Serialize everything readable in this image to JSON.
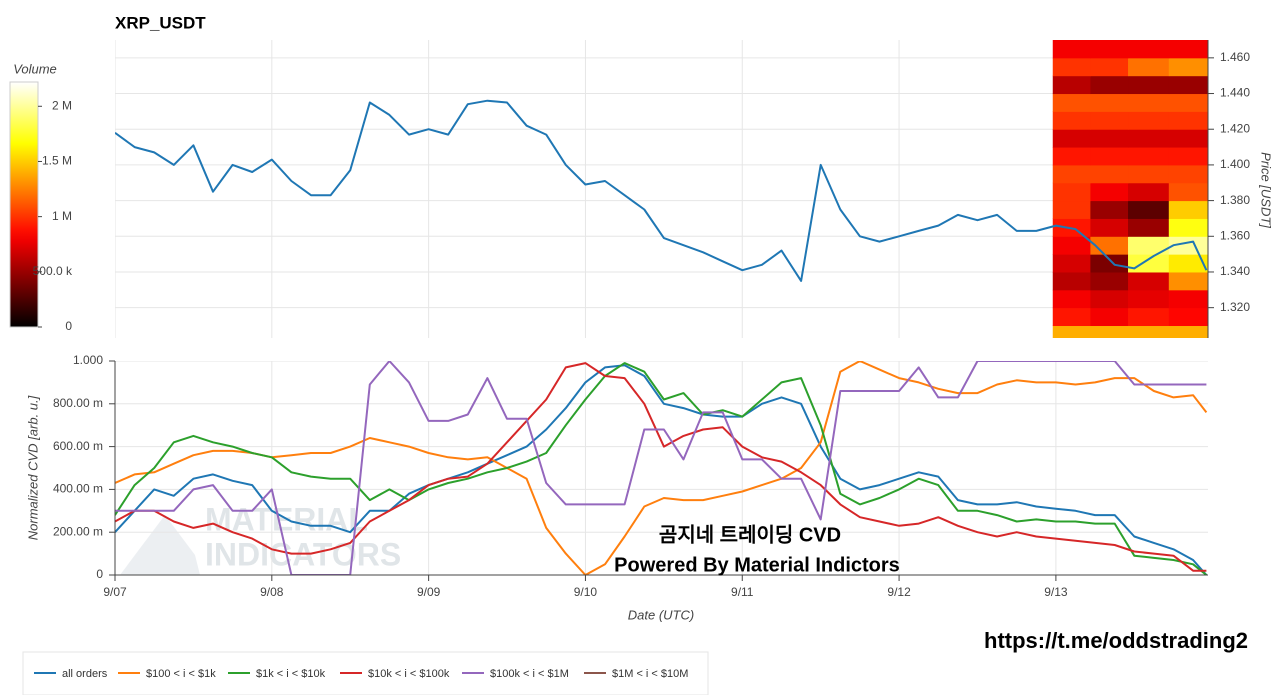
{
  "chart_data": [
    {
      "type": "line",
      "title": "XRP_USDT",
      "ylabel": "Price [USDT]",
      "color": "#1f77b4",
      "x": [
        0,
        0.125,
        0.25,
        0.375,
        0.5,
        0.625,
        0.75,
        0.875,
        1,
        1.125,
        1.25,
        1.375,
        1.5,
        1.625,
        1.75,
        1.875,
        2,
        2.125,
        2.25,
        2.375,
        2.5,
        2.625,
        2.75,
        2.875,
        3,
        3.125,
        3.25,
        3.375,
        3.5,
        3.625,
        3.75,
        3.875,
        4,
        4.125,
        4.25,
        4.375,
        4.5,
        4.625,
        4.75,
        4.875,
        5,
        5.125,
        5.25,
        5.375,
        5.5,
        5.625,
        5.75,
        5.875,
        6,
        6.125,
        6.25,
        6.375,
        6.5,
        6.625,
        6.75,
        6.875,
        6.96
      ],
      "values": [
        1.418,
        1.41,
        1.407,
        1.4,
        1.411,
        1.385,
        1.4,
        1.396,
        1.403,
        1.391,
        1.383,
        1.383,
        1.397,
        1.435,
        1.428,
        1.417,
        1.42,
        1.417,
        1.434,
        1.436,
        1.435,
        1.422,
        1.417,
        1.4,
        1.389,
        1.391,
        1.383,
        1.375,
        1.359,
        1.355,
        1.351,
        1.346,
        1.341,
        1.344,
        1.352,
        1.335,
        1.4,
        1.375,
        1.36,
        1.357,
        1.36,
        1.363,
        1.366,
        1.372,
        1.369,
        1.372,
        1.363,
        1.363,
        1.366,
        1.364,
        1.355,
        1.344,
        1.342,
        1.349,
        1.355,
        1.357,
        1.341
      ],
      "xlim": [
        0,
        6.97
      ],
      "xticks": [
        0,
        1,
        2,
        3,
        4,
        5,
        6
      ],
      "ylim": [
        1.303,
        1.47
      ],
      "yticks": [
        {
          "value": 1.32,
          "label": "1.320"
        },
        {
          "value": 1.34,
          "label": "1.340"
        },
        {
          "value": 1.36,
          "label": "1.360"
        },
        {
          "value": 1.38,
          "label": "1.380"
        },
        {
          "value": 1.4,
          "label": "1.400"
        },
        {
          "value": 1.42,
          "label": "1.420"
        },
        {
          "value": 1.44,
          "label": "1.440"
        },
        {
          "value": 1.46,
          "label": "1.460"
        }
      ],
      "grid": true,
      "heatmap": {
        "x_edges": [
          5.98,
          6.22,
          6.46,
          6.72,
          6.97
        ],
        "y_edges": [
          1.3,
          1.31,
          1.32,
          1.33,
          1.34,
          1.35,
          1.36,
          1.37,
          1.38,
          1.39,
          1.4,
          1.41,
          1.42,
          1.43,
          1.44,
          1.45,
          1.46,
          1.47
        ],
        "values": [
          [
            1400000,
            1400000,
            1400000,
            1400000
          ],
          [
            900000,
            800000,
            900000,
            850000
          ],
          [
            800000,
            700000,
            750000,
            800000
          ],
          [
            600000,
            500000,
            700000,
            1300000
          ],
          [
            700000,
            400000,
            1800000,
            1600000
          ],
          [
            800000,
            1200000,
            1900000,
            2000000
          ],
          [
            900000,
            700000,
            500000,
            1700000
          ],
          [
            1000000,
            500000,
            300000,
            1500000
          ],
          [
            1000000,
            800000,
            700000,
            1100000
          ],
          [
            1050000,
            1050000,
            1050000,
            1050000
          ],
          [
            900000,
            900000,
            900000,
            900000
          ],
          [
            700000,
            700000,
            700000,
            700000
          ],
          [
            1000000,
            1000000,
            1000000,
            1000000
          ],
          [
            1100000,
            1100000,
            1100000,
            1100000
          ],
          [
            600000,
            500000,
            500000,
            500000
          ],
          [
            1000000,
            1000000,
            1200000,
            1300000
          ],
          [
            800000,
            800000,
            800000,
            800000
          ]
        ]
      },
      "colorbar": {
        "title": "Volume",
        "clim": [
          0,
          2220000
        ],
        "ticks": [
          0,
          {
            "value": 500000,
            "label": "500.0 k"
          },
          {
            "value": 1000000,
            "label": "1 M"
          },
          {
            "value": 1500000,
            "label": "1.5 M"
          },
          {
            "value": 2000000,
            "label": "2 M"
          }
        ]
      }
    },
    {
      "type": "line",
      "ylabel": "Normalized CVD [arb. u.]",
      "xlabel": "Date (UTC)",
      "x": [
        0,
        0.125,
        0.25,
        0.375,
        0.5,
        0.625,
        0.75,
        0.875,
        1,
        1.125,
        1.25,
        1.375,
        1.5,
        1.625,
        1.75,
        1.875,
        2,
        2.125,
        2.25,
        2.375,
        2.5,
        2.625,
        2.75,
        2.875,
        3,
        3.125,
        3.25,
        3.375,
        3.5,
        3.625,
        3.75,
        3.875,
        4,
        4.125,
        4.25,
        4.375,
        4.5,
        4.625,
        4.75,
        4.875,
        5,
        5.125,
        5.25,
        5.375,
        5.5,
        5.625,
        5.75,
        5.875,
        6,
        6.125,
        6.25,
        6.375,
        6.5,
        6.625,
        6.75,
        6.875,
        6.96
      ],
      "xlim": [
        0,
        6.97
      ],
      "xticks": [
        {
          "value": 0,
          "label": "9/07"
        },
        {
          "value": 1,
          "label": "9/08"
        },
        {
          "value": 2,
          "label": "9/09"
        },
        {
          "value": 3,
          "label": "9/10"
        },
        {
          "value": 4,
          "label": "9/11"
        },
        {
          "value": 5,
          "label": "9/12"
        },
        {
          "value": 6,
          "label": "9/13"
        }
      ],
      "ylim": [
        0,
        1
      ],
      "yticks": [
        0,
        {
          "value": 0.2,
          "label": "200.00 m"
        },
        {
          "value": 0.4,
          "label": "400.00 m"
        },
        {
          "value": 0.6,
          "label": "600.00 m"
        },
        {
          "value": 0.8,
          "label": "800.00 m"
        },
        {
          "value": 1,
          "label": "1.000"
        }
      ],
      "grid": true,
      "series": [
        {
          "name": "all orders",
          "color": "#1f77b4",
          "values": [
            0.2,
            0.3,
            0.4,
            0.37,
            0.45,
            0.47,
            0.44,
            0.42,
            0.3,
            0.25,
            0.23,
            0.23,
            0.2,
            0.3,
            0.3,
            0.38,
            0.42,
            0.45,
            0.48,
            0.52,
            0.56,
            0.6,
            0.68,
            0.78,
            0.9,
            0.97,
            0.98,
            0.93,
            0.8,
            0.78,
            0.75,
            0.74,
            0.74,
            0.8,
            0.83,
            0.8,
            0.6,
            0.45,
            0.4,
            0.42,
            0.45,
            0.48,
            0.46,
            0.35,
            0.33,
            0.33,
            0.34,
            0.32,
            0.31,
            0.3,
            0.28,
            0.28,
            0.18,
            0.15,
            0.12,
            0.07,
            0
          ]
        },
        {
          "name": "$100 < i < $1k",
          "color": "#ff7f0e",
          "values": [
            0.43,
            0.47,
            0.48,
            0.52,
            0.56,
            0.58,
            0.58,
            0.57,
            0.55,
            0.56,
            0.57,
            0.57,
            0.6,
            0.64,
            0.62,
            0.6,
            0.57,
            0.55,
            0.54,
            0.55,
            0.5,
            0.45,
            0.22,
            0.1,
            0,
            0.05,
            0.18,
            0.32,
            0.36,
            0.35,
            0.35,
            0.37,
            0.39,
            0.42,
            0.45,
            0.5,
            0.62,
            0.95,
            1,
            0.96,
            0.92,
            0.9,
            0.87,
            0.85,
            0.85,
            0.89,
            0.91,
            0.9,
            0.9,
            0.89,
            0.9,
            0.92,
            0.92,
            0.86,
            0.83,
            0.84,
            0.76
          ]
        },
        {
          "name": "$1k < i < $10k",
          "color": "#2ca02c",
          "values": [
            0.28,
            0.42,
            0.5,
            0.62,
            0.65,
            0.62,
            0.6,
            0.57,
            0.55,
            0.48,
            0.46,
            0.45,
            0.45,
            0.35,
            0.4,
            0.35,
            0.4,
            0.43,
            0.45,
            0.48,
            0.5,
            0.53,
            0.57,
            0.7,
            0.82,
            0.93,
            0.99,
            0.95,
            0.82,
            0.85,
            0.75,
            0.77,
            0.74,
            0.82,
            0.9,
            0.92,
            0.7,
            0.38,
            0.33,
            0.36,
            0.4,
            0.45,
            0.42,
            0.3,
            0.3,
            0.28,
            0.25,
            0.26,
            0.25,
            0.25,
            0.24,
            0.24,
            0.09,
            0.08,
            0.07,
            0.05,
            0
          ]
        },
        {
          "name": "$10k < i < $100k",
          "color": "#d62728",
          "values": [
            0.25,
            0.3,
            0.3,
            0.25,
            0.22,
            0.24,
            0.2,
            0.17,
            0.12,
            0.1,
            0.1,
            0.12,
            0.15,
            0.25,
            0.3,
            0.35,
            0.42,
            0.45,
            0.46,
            0.52,
            0.62,
            0.72,
            0.82,
            0.97,
            0.99,
            0.93,
            0.92,
            0.8,
            0.6,
            0.65,
            0.68,
            0.69,
            0.6,
            0.55,
            0.53,
            0.48,
            0.42,
            0.33,
            0.27,
            0.25,
            0.23,
            0.24,
            0.27,
            0.23,
            0.2,
            0.18,
            0.2,
            0.18,
            0.17,
            0.16,
            0.15,
            0.14,
            0.11,
            0.1,
            0.09,
            0.02,
            0.02
          ]
        },
        {
          "name": "$100k < i < $1M",
          "color": "#9467bd",
          "values": [
            0.3,
            0.3,
            0.3,
            0.3,
            0.4,
            0.42,
            0.3,
            0.3,
            0.4,
            0,
            0,
            0,
            0,
            0.89,
            1,
            0.9,
            0.72,
            0.72,
            0.75,
            0.92,
            0.73,
            0.73,
            0.43,
            0.33,
            0.33,
            0.33,
            0.33,
            0.68,
            0.68,
            0.54,
            0.76,
            0.76,
            0.54,
            0.54,
            0.45,
            0.45,
            0.26,
            0.86,
            0.86,
            0.86,
            0.86,
            0.97,
            0.83,
            0.83,
            1,
            1,
            1,
            1,
            1,
            1,
            1,
            1,
            0.89,
            0.89,
            0.89,
            0.89,
            0.89
          ]
        },
        {
          "name": "$1M < i < $10M",
          "color": "#8c564b",
          "values": [
            null,
            null,
            null,
            null,
            null,
            null,
            null,
            null,
            null,
            null,
            null,
            null,
            null,
            null,
            null,
            null,
            null,
            null,
            null,
            null,
            null,
            null,
            null,
            null,
            null,
            null,
            null,
            null,
            null,
            null,
            null,
            null,
            null,
            null,
            null,
            null,
            null,
            null,
            null,
            null,
            null,
            null,
            null,
            null,
            null,
            null,
            null,
            null,
            null,
            null,
            null,
            null,
            null,
            null,
            null,
            null,
            null
          ]
        }
      ]
    }
  ],
  "watermark": {
    "line1": "곰지네 트레이딩 CVD",
    "line2": "Powered By Material Indictors",
    "logo1": "MATERIAL",
    "logo2": "INDICATORS"
  },
  "link": "https://t.me/oddstrading2"
}
